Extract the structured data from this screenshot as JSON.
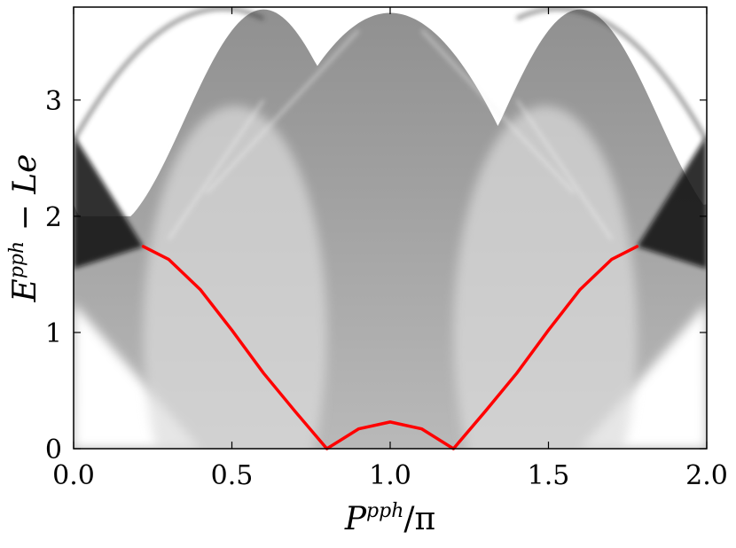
{
  "chart_data": {
    "type": "heatmap",
    "title": "",
    "xlabel": "P^{pph}/π",
    "ylabel": "E^{pph} − Le",
    "xlim": [
      0.0,
      2.0
    ],
    "ylim": [
      0.0,
      3.8
    ],
    "x_ticks": [
      0.0,
      0.5,
      1.0,
      1.5,
      2.0
    ],
    "x_tick_labels": [
      "0.0",
      "0.5",
      "1.0",
      "1.5",
      "2.0"
    ],
    "y_ticks": [
      0,
      1,
      2,
      3
    ],
    "y_tick_labels": [
      "0",
      "1",
      "2",
      "3"
    ],
    "grid": false,
    "colormap": "grayscale (white = 0, black = high intensity)",
    "series": [
      {
        "type": "line",
        "color": "#ff0000",
        "x": [
          0.22,
          0.3,
          0.4,
          0.5,
          0.6,
          0.7,
          0.8,
          0.9,
          1.0,
          1.1,
          1.2,
          1.3,
          1.4,
          1.5,
          1.6,
          1.7,
          1.78
        ],
        "y": [
          1.74,
          1.63,
          1.37,
          1.02,
          0.65,
          0.32,
          0.0,
          0.17,
          0.23,
          0.17,
          0.0,
          0.32,
          0.65,
          1.02,
          1.37,
          1.63,
          1.74
        ]
      }
    ]
  }
}
